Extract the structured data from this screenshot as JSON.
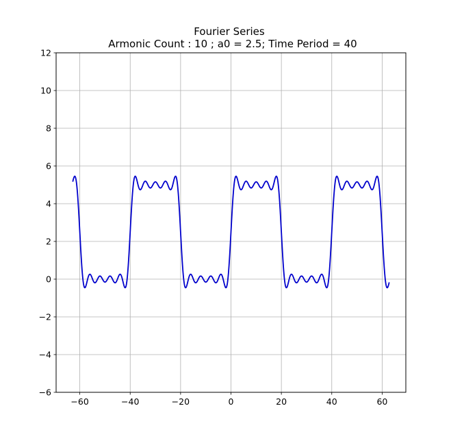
{
  "chart_data": {
    "type": "line",
    "title": "Fourier Series",
    "subtitle": "Armonic Count : 10 ; a0 = 2.5; Time Period = 40",
    "xlabel": "",
    "ylabel": "",
    "xlim": [
      -69.4,
      69.4
    ],
    "ylim": [
      -6,
      12
    ],
    "x_ticks": [
      -60,
      -40,
      -20,
      0,
      20,
      40,
      60
    ],
    "y_ticks": [
      -6,
      -4,
      -2,
      0,
      2,
      4,
      6,
      8,
      10,
      12
    ],
    "x_tick_labels": [
      "−60",
      "−40",
      "−20",
      "0",
      "20",
      "40",
      "60"
    ],
    "y_tick_labels": [
      "−6",
      "−4",
      "−2",
      "0",
      "2",
      "4",
      "6",
      "8",
      "10",
      "12"
    ],
    "grid": true,
    "series_color": "#0000cc",
    "fourier": {
      "a0": 2.5,
      "harmonic_count": 10,
      "time_period": 40,
      "amplitude": 5,
      "x_start": -62.8,
      "x_end": 62.8
    }
  }
}
